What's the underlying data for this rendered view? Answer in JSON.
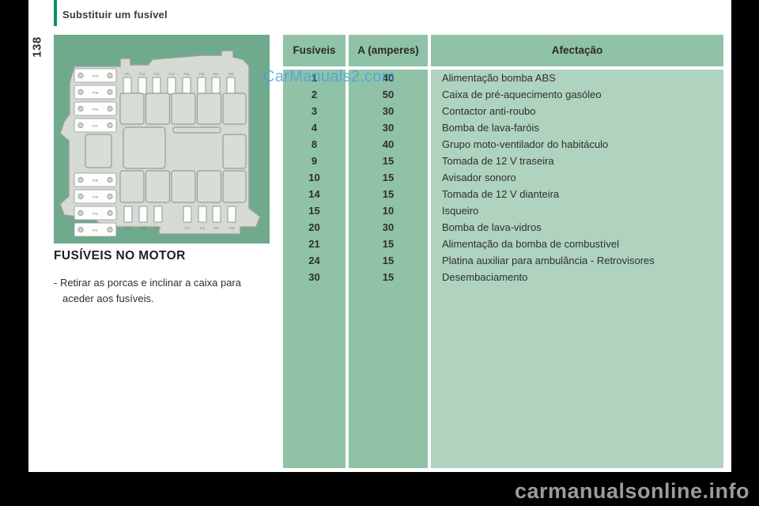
{
  "page_number": "138",
  "header": {
    "section_title": "Substituir um fusível"
  },
  "main": {
    "heading": "FUSÍVEIS NO MOTOR",
    "instructions_line1": "- Retirar as porcas e inclinar a caixa para",
    "instructions_line2": "aceder aos fusíveis."
  },
  "table": {
    "headers": {
      "fuse": "Fusíveis",
      "amps": "A (amperes)",
      "affect": "Afectação"
    },
    "rows": [
      [
        "1",
        "40",
        "Alimentação bomba ABS"
      ],
      [
        "2",
        "50",
        "Caixa de pré-aquecimento gasóleo"
      ],
      [
        "3",
        "30",
        "Contactor anti-roubo"
      ],
      [
        "4",
        "30",
        "Bomba de lava-faróis"
      ],
      [
        "8",
        "40",
        "Grupo moto-ventilador do habitáculo"
      ],
      [
        "9",
        "15",
        "Tomada de 12 V traseira"
      ],
      [
        "10",
        "15",
        "Avisador sonoro"
      ],
      [
        "14",
        "15",
        "Tomada de 12 V dianteira"
      ],
      [
        "15",
        "10",
        "Isqueiro"
      ],
      [
        "20",
        "30",
        "Bomba de lava-vidros"
      ],
      [
        "21",
        "15",
        "Alimentação da bomba de combustível"
      ],
      [
        "24",
        "15",
        "Platina auxiliar para ambulância - Retrovisores"
      ],
      [
        "30",
        "15",
        "Desembaciamento"
      ]
    ]
  },
  "fusebox": {
    "left_strip_labels": [
      "F03",
      "F08",
      "F04",
      "F07",
      "F06",
      "F05",
      "F02",
      "F01"
    ],
    "top_fuse_labels": [
      "F24",
      "F14",
      "F13",
      "F15",
      "F19",
      "F16",
      "F09",
      "F30"
    ],
    "bottom_fuse_labels": [
      "F23",
      "F18",
      "F21",
      "F17",
      "F11",
      "F22",
      "F20"
    ]
  },
  "watermarks": {
    "overlay": "CarManuals2.com",
    "footer": "carmanualsonline.info"
  },
  "colors": {
    "accent": "#0a9160",
    "image_bg": "#6faa8d",
    "table_dark": "#8fc2a7",
    "table_light": "#afd3be",
    "fusebox_body": "#d5dad4",
    "fusebox_outline": "#97a197"
  }
}
